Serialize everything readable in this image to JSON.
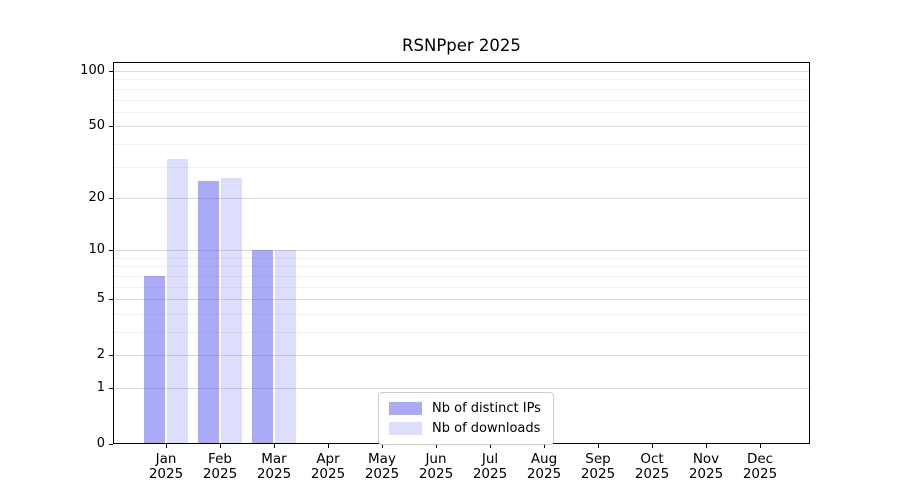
{
  "title": "RSNPper 2025",
  "colors": {
    "bar_distinct_ips": "rgba(85,85,240,0.5)",
    "bar_downloads": "rgba(85,85,240,0.2)",
    "grid_major": "#d9d9d9",
    "grid_minor": "#f1f1f1",
    "axis": "#000000",
    "legend_border": "#cccccc",
    "background": "#ffffff",
    "text": "#000000"
  },
  "chart_data": {
    "type": "bar",
    "title": "RSNPper 2025",
    "categories": [
      "Jan",
      "Feb",
      "Mar",
      "Apr",
      "May",
      "Jun",
      "Jul",
      "Aug",
      "Sep",
      "Oct",
      "Nov",
      "Dec"
    ],
    "category_year": "2025",
    "series": [
      {
        "name": "Nb of distinct IPs",
        "color": "rgba(85,85,240,0.5)",
        "values": [
          7,
          25,
          10,
          0,
          0,
          0,
          0,
          0,
          0,
          0,
          0,
          0
        ]
      },
      {
        "name": "Nb of downloads",
        "color": "rgba(85,85,240,0.2)",
        "values": [
          33,
          26,
          10,
          0,
          0,
          0,
          0,
          0,
          0,
          0,
          0,
          0
        ]
      }
    ],
    "xlabel": "",
    "ylabel": "",
    "yscale": "symlog-log1p",
    "ylim": [
      0,
      112
    ],
    "yticks": [
      0,
      1,
      2,
      5,
      10,
      20,
      50,
      100
    ],
    "ytick_labels": [
      "0",
      "1",
      "2",
      "5",
      "10",
      "20",
      "50",
      "100"
    ],
    "yticks_minor": [
      3,
      4,
      6,
      7,
      8,
      9,
      30,
      40,
      60,
      70,
      80,
      90
    ],
    "grid": "on",
    "legend_position": "lower center"
  }
}
